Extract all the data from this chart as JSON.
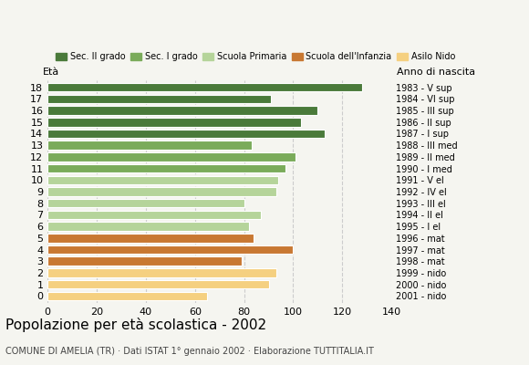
{
  "ages": [
    18,
    17,
    16,
    15,
    14,
    13,
    12,
    11,
    10,
    9,
    8,
    7,
    6,
    5,
    4,
    3,
    2,
    1,
    0
  ],
  "values": [
    128,
    91,
    110,
    103,
    113,
    83,
    101,
    97,
    94,
    93,
    80,
    87,
    82,
    84,
    100,
    79,
    93,
    90,
    65
  ],
  "anno_nascita": [
    "1983 - V sup",
    "1984 - VI sup",
    "1985 - III sup",
    "1986 - II sup",
    "1987 - I sup",
    "1988 - III med",
    "1989 - II med",
    "1990 - I med",
    "1991 - V el",
    "1992 - IV el",
    "1993 - III el",
    "1994 - II el",
    "1995 - I el",
    "1996 - mat",
    "1997 - mat",
    "1998 - mat",
    "1999 - nido",
    "2000 - nido",
    "2001 - nido"
  ],
  "colors": [
    "#4a7a3a",
    "#4a7a3a",
    "#4a7a3a",
    "#4a7a3a",
    "#4a7a3a",
    "#7aab5a",
    "#7aab5a",
    "#7aab5a",
    "#b5d49a",
    "#b5d49a",
    "#b5d49a",
    "#b5d49a",
    "#b5d49a",
    "#c87832",
    "#c87832",
    "#c87832",
    "#f5d080",
    "#f5d080",
    "#f5d080"
  ],
  "legend_labels": [
    "Sec. II grado",
    "Sec. I grado",
    "Scuola Primaria",
    "Scuola dell'Infanzia",
    "Asilo Nido"
  ],
  "legend_colors": [
    "#4a7a3a",
    "#7aab5a",
    "#b5d49a",
    "#c87832",
    "#f5d080"
  ],
  "title": "Popolazione per età scolastica - 2002",
  "subtitle": "COMUNE DI AMELIA (TR) · Dati ISTAT 1° gennaio 2002 · Elaborazione TUTTITALIA.IT",
  "xlabel_eta": "Età",
  "xlabel_anno": "Anno di nascita",
  "xlim": [
    0,
    140
  ],
  "xticks": [
    0,
    20,
    40,
    60,
    80,
    100,
    120,
    140
  ],
  "background_color": "#f5f5f0",
  "bar_edge_color": "white",
  "grid_color": "#cccccc"
}
